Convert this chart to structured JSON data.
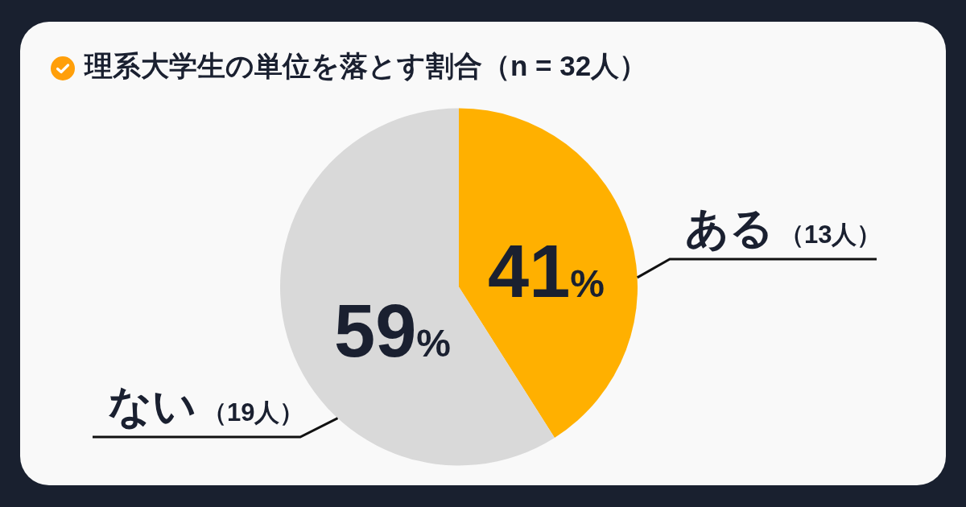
{
  "chart_data": {
    "type": "pie",
    "title": "理系大学生の単位を落とす割合（n = 32人）",
    "categories": [
      "ある",
      "ない"
    ],
    "values": [
      41,
      59
    ],
    "colors": [
      "#ffb000",
      "#d9d9d9"
    ],
    "value_labels": [
      "41%",
      "59%"
    ],
    "annotations": [
      "（13人）",
      "（19人）"
    ]
  }
}
